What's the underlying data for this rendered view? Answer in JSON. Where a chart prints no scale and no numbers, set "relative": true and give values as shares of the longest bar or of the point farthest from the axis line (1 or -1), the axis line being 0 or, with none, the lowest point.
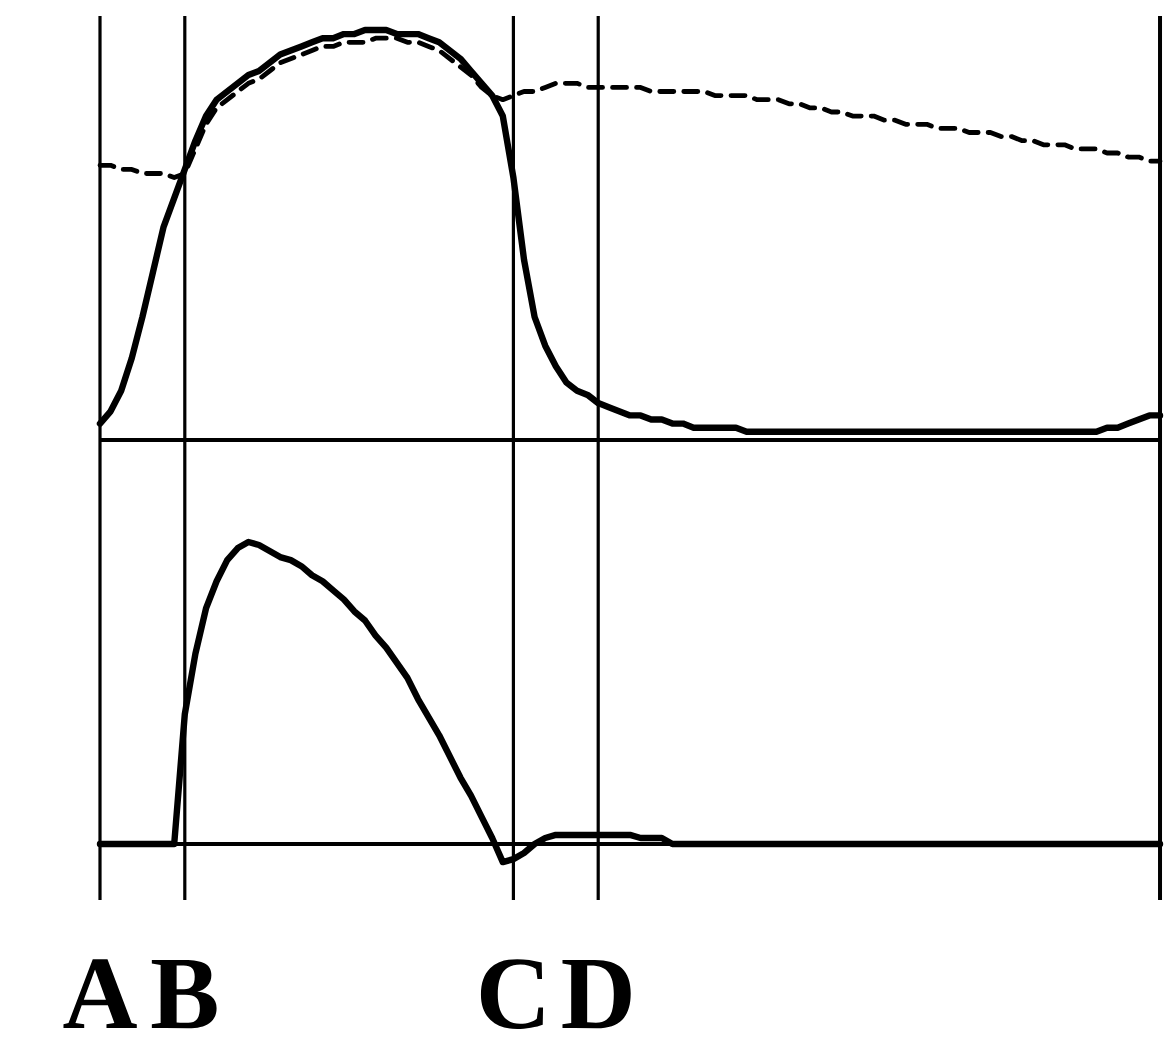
{
  "chart_data": [
    {
      "type": "line",
      "relative": true,
      "grid": "x",
      "categories": [
        null,
        null,
        null,
        null,
        null,
        null,
        null,
        null,
        null,
        null,
        null,
        null,
        null,
        null,
        null,
        null,
        null,
        null,
        null,
        null,
        null,
        null,
        null,
        null,
        null,
        null,
        null,
        null,
        null,
        null,
        null,
        null,
        null,
        null,
        null,
        null,
        null,
        null,
        null,
        null,
        null,
        null,
        null,
        null,
        null,
        null,
        null,
        null,
        null,
        null,
        null,
        null,
        null,
        null,
        null,
        null,
        null,
        null,
        null,
        null,
        null,
        null,
        null,
        null,
        null,
        null,
        null,
        null,
        null,
        null,
        null,
        null,
        null,
        null,
        null,
        null,
        null,
        null,
        null,
        null,
        null,
        null,
        null,
        null,
        null,
        null,
        null,
        null,
        null,
        null,
        null,
        null,
        null,
        null,
        null,
        null,
        null,
        null,
        null,
        null,
        null
      ],
      "series": [
        {
          "color": "#000000",
          "line_style": "solid",
          "values": [
            0.04,
            0.07,
            0.12,
            0.2,
            0.3,
            0.41,
            0.52,
            0.59,
            0.66,
            0.73,
            0.79,
            0.83,
            0.85,
            0.87,
            0.89,
            0.9,
            0.92,
            0.94,
            0.95,
            0.96,
            0.97,
            0.98,
            0.98,
            0.99,
            0.99,
            1.0,
            1.0,
            1.0,
            0.99,
            0.99,
            0.99,
            0.98,
            0.97,
            0.95,
            0.93,
            0.9,
            0.87,
            0.84,
            0.79,
            0.64,
            0.44,
            0.3,
            0.23,
            0.18,
            0.14,
            0.12,
            0.11,
            0.09,
            0.08,
            0.07,
            0.06,
            0.06,
            0.05,
            0.05,
            0.04,
            0.04,
            0.03,
            0.03,
            0.03,
            0.03,
            0.03,
            0.02,
            0.02,
            0.02,
            0.02,
            0.02,
            0.02,
            0.02,
            0.02,
            0.02,
            0.02,
            0.02,
            0.02,
            0.02,
            0.02,
            0.02,
            0.02,
            0.02,
            0.02,
            0.02,
            0.02,
            0.02,
            0.02,
            0.02,
            0.02,
            0.02,
            0.02,
            0.02,
            0.02,
            0.02,
            0.02,
            0.02,
            0.02,
            0.02,
            0.02,
            0.03,
            0.03,
            0.04,
            0.05,
            0.06,
            0.06
          ]
        },
        {
          "color": "#000000",
          "line_style": "dashed",
          "values": [
            0.67,
            0.67,
            0.66,
            0.66,
            0.65,
            0.65,
            0.65,
            0.64,
            0.65,
            0.71,
            0.77,
            0.81,
            0.83,
            0.85,
            0.87,
            0.88,
            0.9,
            0.92,
            0.93,
            0.94,
            0.95,
            0.96,
            0.96,
            0.97,
            0.97,
            0.97,
            0.98,
            0.98,
            0.98,
            0.97,
            0.97,
            0.96,
            0.95,
            0.93,
            0.91,
            0.89,
            0.86,
            0.84,
            0.83,
            0.84,
            0.85,
            0.85,
            0.86,
            0.87,
            0.87,
            0.87,
            0.86,
            0.86,
            0.86,
            0.86,
            0.86,
            0.86,
            0.85,
            0.85,
            0.85,
            0.85,
            0.85,
            0.85,
            0.84,
            0.84,
            0.84,
            0.84,
            0.83,
            0.83,
            0.83,
            0.82,
            0.82,
            0.81,
            0.81,
            0.8,
            0.8,
            0.79,
            0.79,
            0.79,
            0.78,
            0.78,
            0.77,
            0.77,
            0.77,
            0.76,
            0.76,
            0.76,
            0.75,
            0.75,
            0.75,
            0.74,
            0.74,
            0.73,
            0.73,
            0.72,
            0.72,
            0.72,
            0.71,
            0.71,
            0.71,
            0.7,
            0.7,
            0.69,
            0.69,
            0.68,
            0.68
          ]
        }
      ]
    },
    {
      "type": "line",
      "relative": true,
      "tick_labels": "x",
      "grid": "x",
      "categories": [
        "A",
        null,
        null,
        null,
        null,
        null,
        null,
        null,
        "B",
        null,
        null,
        null,
        null,
        null,
        null,
        null,
        null,
        null,
        null,
        null,
        null,
        null,
        null,
        null,
        null,
        null,
        null,
        null,
        null,
        null,
        null,
        null,
        null,
        null,
        null,
        null,
        null,
        null,
        null,
        "C",
        null,
        null,
        null,
        null,
        null,
        null,
        null,
        "D",
        null,
        null,
        null,
        null,
        null,
        null,
        null,
        null,
        null,
        null,
        null,
        null,
        null,
        null,
        null,
        null,
        null,
        null,
        null,
        null,
        null,
        null,
        null,
        null,
        null,
        null,
        null,
        null,
        null,
        null,
        null,
        null,
        null,
        null,
        null,
        null,
        null,
        null,
        null,
        null,
        null,
        null,
        null,
        null,
        null,
        null,
        null,
        null,
        null,
        null,
        null,
        null,
        null
      ],
      "series": [
        {
          "color": "#000000",
          "line_style": "solid",
          "values": [
            0,
            0,
            0,
            0,
            0,
            0,
            0,
            0,
            0.43,
            0.63,
            0.78,
            0.87,
            0.94,
            0.98,
            1.0,
            0.99,
            0.97,
            0.95,
            0.94,
            0.92,
            0.89,
            0.87,
            0.84,
            0.81,
            0.77,
            0.74,
            0.69,
            0.65,
            0.6,
            0.55,
            0.48,
            0.42,
            0.36,
            0.29,
            0.22,
            0.16,
            0.09,
            0.02,
            -0.06,
            -0.05,
            -0.03,
            0,
            0.02,
            0.03,
            0.03,
            0.03,
            0.03,
            0.03,
            0.03,
            0.03,
            0.03,
            0.02,
            0.02,
            0.02,
            0,
            0,
            0,
            0,
            0,
            0,
            0,
            0,
            0,
            0,
            0,
            0,
            0,
            0,
            0,
            0,
            0,
            0,
            0,
            0,
            0,
            0,
            0,
            0,
            0,
            0,
            0,
            0,
            0,
            0,
            0,
            0,
            0,
            0,
            0,
            0,
            0,
            0,
            0,
            0,
            0,
            0,
            0,
            0,
            0,
            0,
            0
          ]
        }
      ]
    }
  ]
}
